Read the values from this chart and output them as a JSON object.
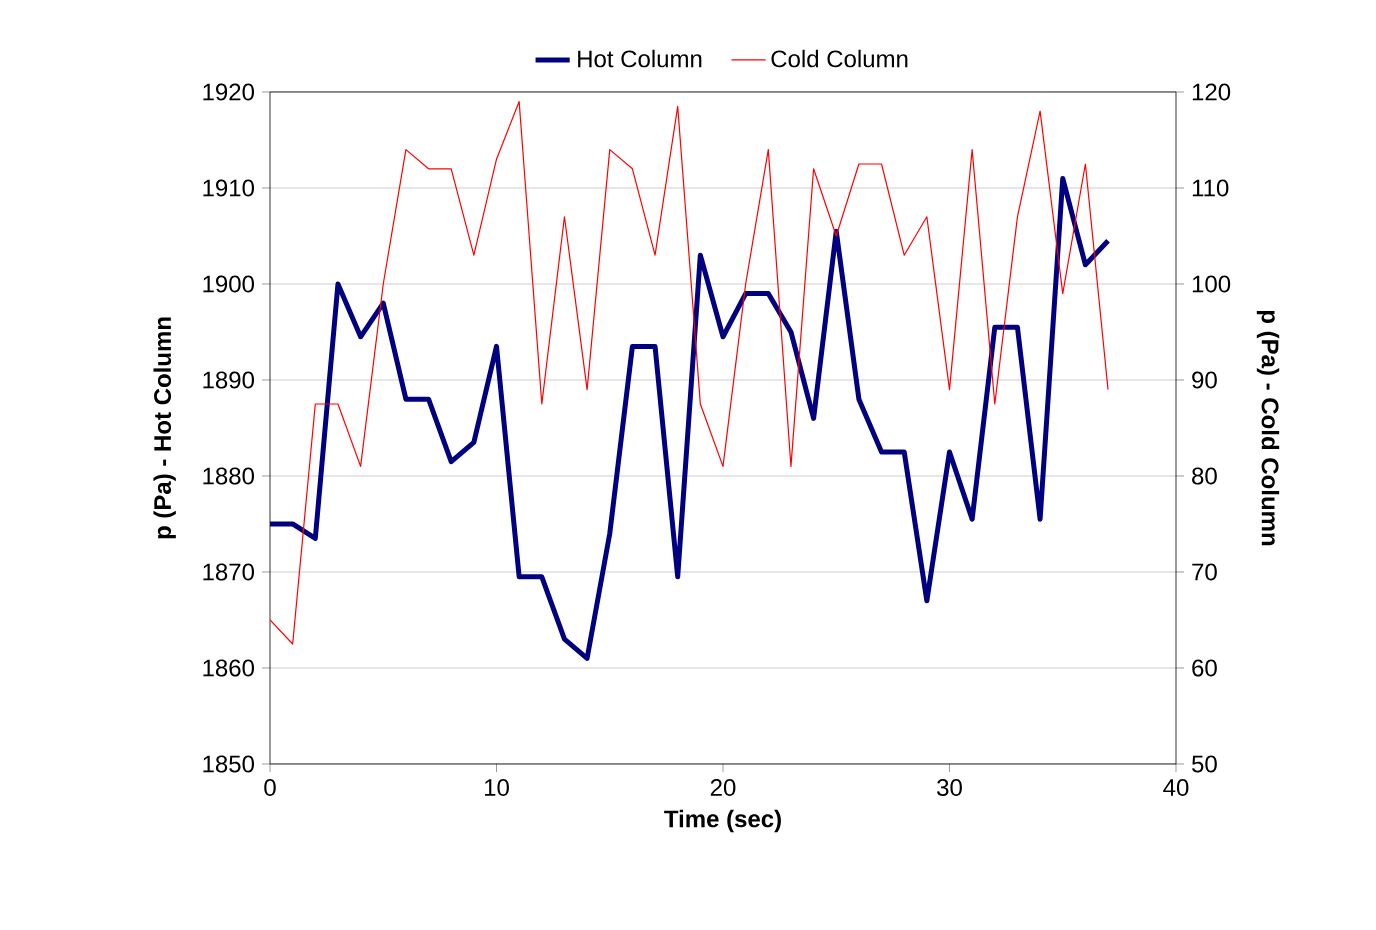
{
  "chart_data": {
    "type": "line",
    "xlabel": "Time (sec)",
    "ylabel": "p (Pa) - Hot Column",
    "y2label": "p (Pa) - Cold Column",
    "x": [
      0,
      1,
      2,
      3,
      4,
      5,
      6,
      7,
      8,
      9,
      10,
      11,
      12,
      13,
      14,
      15,
      16,
      17,
      18,
      19,
      20,
      21,
      22,
      23,
      24,
      25,
      26,
      27,
      28,
      29,
      30,
      31,
      32,
      33,
      34,
      35,
      36,
      37
    ],
    "series": [
      {
        "name": "Hot Column",
        "color": "#000080",
        "values": [
          1875,
          1875,
          1873.5,
          1900,
          1894.5,
          1898,
          1888,
          1888,
          1881.5,
          1883.5,
          1893.5,
          1869.5,
          1869.5,
          1863,
          1861,
          1874,
          1893.5,
          1893.5,
          1869.5,
          1903,
          1894.5,
          1899,
          1899,
          1895,
          1886,
          1905.5,
          1888,
          1882.5,
          1882.5,
          1867,
          1882.5,
          1875.5,
          1895.5,
          1895.5,
          1875.5,
          1911,
          1902,
          1904.5
        ]
      },
      {
        "name": "Cold Column",
        "color": "#ff0000",
        "axis": "y2",
        "values": [
          65,
          62.5,
          87.5,
          87.5,
          81,
          100,
          114,
          112,
          112,
          103,
          113,
          119,
          87.5,
          107,
          89,
          114,
          112,
          103,
          118.5,
          87.5,
          81,
          100,
          114,
          81,
          112,
          105,
          112.5,
          112.5,
          103,
          107,
          89,
          114,
          87.5,
          107,
          118,
          99,
          112.5,
          89
        ]
      }
    ],
    "xlim": [
      0,
      40
    ],
    "xticks": [
      0,
      10,
      20,
      30,
      40
    ],
    "ylim": [
      1850,
      1920
    ],
    "yticks": [
      1850,
      1860,
      1870,
      1880,
      1890,
      1900,
      1910,
      1920
    ],
    "y2lim": [
      50,
      120
    ],
    "y2ticks": [
      50,
      60,
      70,
      80,
      90,
      100,
      110,
      120
    ],
    "grid": "y",
    "legend": "top",
    "marker": "none",
    "line_style": "solid"
  }
}
